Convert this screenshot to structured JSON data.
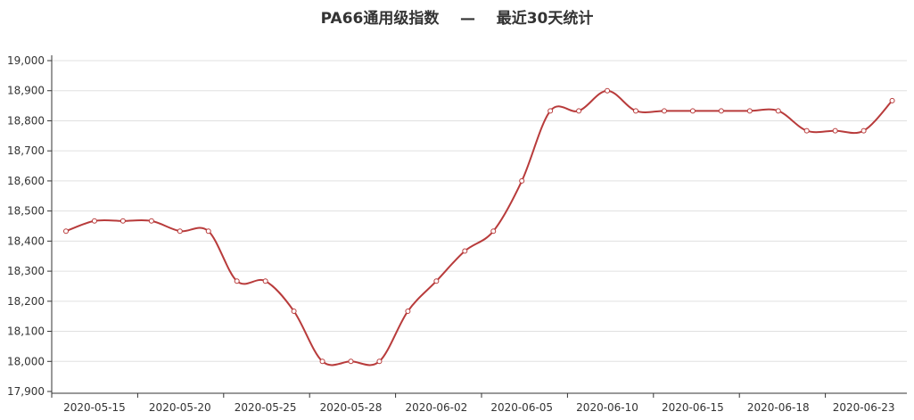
{
  "chart_data": {
    "type": "line",
    "title": "PA66通用级指数    —    最近30天统计",
    "xlabel": "",
    "ylabel": "",
    "ylim": [
      17900,
      19000
    ],
    "y_ticks": [
      "17,900",
      "18,000",
      "18,100",
      "18,200",
      "18,300",
      "18,400",
      "18,500",
      "18,600",
      "18,700",
      "18,800",
      "18,900",
      "19,000"
    ],
    "x_tick_labels": [
      "2020-05-15",
      "2020-05-20",
      "2020-05-25",
      "2020-05-28",
      "2020-06-02",
      "2020-06-05",
      "2020-06-10",
      "2020-06-15",
      "2020-06-18",
      "2020-06-23"
    ],
    "grid": true,
    "colors": {
      "line": "#b83b3b",
      "grid": "#e0e0e0",
      "axis": "#333333"
    },
    "series": [
      {
        "values": [
          18433,
          18467,
          18467,
          18467,
          18433,
          18433,
          18267,
          18267,
          18167,
          18000,
          18000,
          18000,
          18167,
          18267,
          18367,
          18433,
          18600,
          18833,
          18833,
          18900,
          18833,
          18833,
          18833,
          18833,
          18833,
          18833,
          18767,
          18767,
          18767,
          18867
        ]
      }
    ]
  }
}
